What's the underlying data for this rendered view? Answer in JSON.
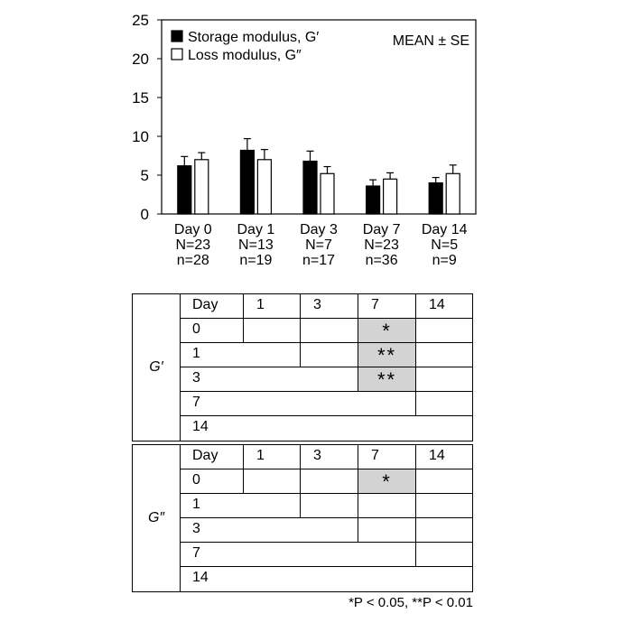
{
  "chart_data": {
    "type": "bar",
    "categories": [
      "Day 0",
      "Day 1",
      "Day 3",
      "Day 7",
      "Day 14"
    ],
    "category_N": [
      "N=23",
      "N=13",
      "N=7",
      "N=23",
      "N=5"
    ],
    "category_n": [
      "n=28",
      "n=19",
      "n=17",
      "n=36",
      "n=9"
    ],
    "series": [
      {
        "name": "Storage modulus, G′",
        "values": [
          6.2,
          8.2,
          6.8,
          3.6,
          4.0
        ],
        "errors": [
          1.2,
          1.5,
          1.3,
          0.8,
          0.7
        ],
        "fill": "#000000"
      },
      {
        "name": "Loss modulus, G″",
        "values": [
          7.0,
          7.0,
          5.2,
          4.5,
          5.2
        ],
        "errors": [
          0.9,
          1.3,
          0.9,
          0.8,
          1.1
        ],
        "fill": "#ffffff"
      }
    ],
    "ylim": [
      0,
      25
    ],
    "yticks": [
      "0",
      "5",
      "10",
      "15",
      "20",
      "25"
    ],
    "annotation": "MEAN ± SE",
    "legend_position": "top-left"
  },
  "tables": [
    {
      "label": "G′",
      "header": [
        "Day",
        "1",
        "3",
        "7",
        "14"
      ],
      "rows": [
        {
          "day": "0",
          "cells": [
            "",
            "",
            "*",
            ""
          ]
        },
        {
          "day": "1",
          "cells": [
            "",
            "**",
            ""
          ]
        },
        {
          "day": "3",
          "cells": [
            "**",
            ""
          ]
        },
        {
          "day": "7",
          "cells": [
            ""
          ]
        },
        {
          "day": "14",
          "cells": []
        }
      ]
    },
    {
      "label": "G″",
      "header": [
        "Day",
        "1",
        "3",
        "7",
        "14"
      ],
      "rows": [
        {
          "day": "0",
          "cells": [
            "",
            "",
            "*",
            ""
          ]
        },
        {
          "day": "1",
          "cells": [
            "",
            "",
            ""
          ]
        },
        {
          "day": "3",
          "cells": [
            "",
            ""
          ]
        },
        {
          "day": "7",
          "cells": [
            ""
          ]
        },
        {
          "day": "14",
          "cells": []
        }
      ]
    }
  ],
  "footnote": "*P < 0.05, **P < 0.01",
  "colors": {
    "significant_cell": "#d3d3d3",
    "bar_storage": "#000000",
    "bar_loss": "#ffffff"
  }
}
